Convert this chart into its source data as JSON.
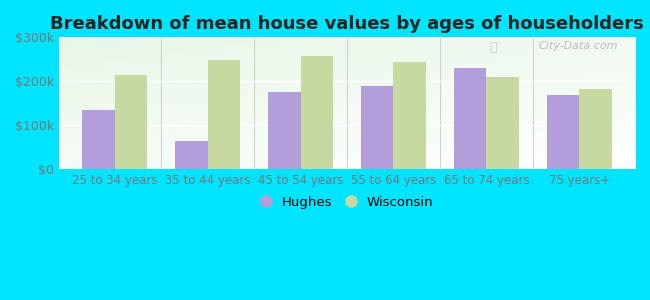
{
  "title": "Breakdown of mean house values by ages of householders",
  "categories": [
    "25 to 34 years",
    "35 to 44 years",
    "45 to 54 years",
    "55 to 64 years",
    "65 to 74 years",
    "75 years+"
  ],
  "hughes_values": [
    135000,
    65000,
    175000,
    190000,
    230000,
    168000
  ],
  "wisconsin_values": [
    215000,
    248000,
    258000,
    243000,
    210000,
    183000
  ],
  "hughes_color": "#b39ddb",
  "wisconsin_color": "#c5d9a0",
  "background_outer": "#00e5ff",
  "ylim": [
    0,
    300000
  ],
  "yticks": [
    0,
    100000,
    200000,
    300000
  ],
  "ytick_labels": [
    "$0",
    "$100k",
    "$200k",
    "$300k"
  ],
  "legend_hughes": "Hughes",
  "legend_wisconsin": "Wisconsin",
  "title_fontsize": 13,
  "bar_width": 0.35,
  "watermark": "City-Data.com"
}
